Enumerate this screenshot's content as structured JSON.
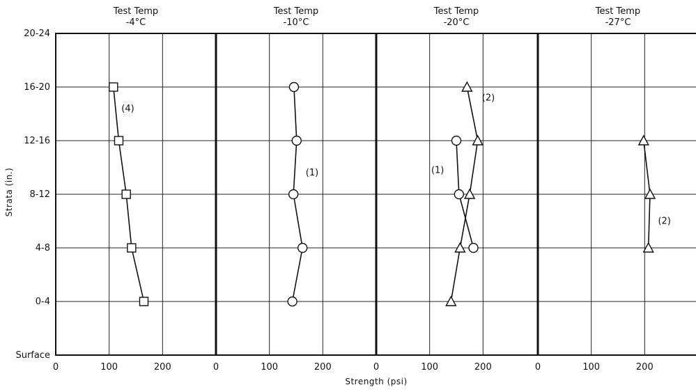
{
  "chart_data": {
    "type": "line",
    "orientation": "values on x, strata on y",
    "ylabel": "Strata (in.)",
    "xlabel": "Strength (psi)",
    "y_categories": [
      "Surface",
      "0-4",
      "4-8",
      "8-12",
      "12-16",
      "16-20",
      "20-24"
    ],
    "x_ticks": [
      "0",
      "100",
      "200"
    ],
    "xlim": [
      0,
      300
    ],
    "grid": true,
    "panels": [
      {
        "title_line1": "Test Temp",
        "title_line2": "-4°C",
        "series": [
          {
            "marker": "square",
            "label": "(4)",
            "label_at": [
              135,
              4.6
            ],
            "points": [
              [
                108,
                5
              ],
              [
                118,
                4
              ],
              [
                132,
                3
              ],
              [
                142,
                2
              ],
              [
                165,
                1
              ]
            ]
          }
        ]
      },
      {
        "title_line1": "Test Temp",
        "title_line2": "-10°C",
        "series": [
          {
            "marker": "circle",
            "label": "(1)",
            "label_at": [
              180,
              3.4
            ],
            "points": [
              [
                146,
                5
              ],
              [
                151,
                4
              ],
              [
                145,
                3
              ],
              [
                162,
                2
              ],
              [
                143,
                1
              ]
            ]
          }
        ]
      },
      {
        "title_line1": "Test Temp",
        "title_line2": "-20°C",
        "series": [
          {
            "marker": "triangle",
            "label": "(2)",
            "label_at": [
              210,
              4.8
            ],
            "points": [
              [
                170,
                5
              ],
              [
                190,
                4
              ],
              [
                175,
                3
              ],
              [
                157,
                2
              ],
              [
                140,
                1
              ]
            ]
          },
          {
            "marker": "circle",
            "label": "(1)",
            "label_at": [
              115,
              3.45
            ],
            "points": [
              [
                150,
                4
              ],
              [
                155,
                3
              ],
              [
                182,
                2
              ]
            ]
          }
        ]
      },
      {
        "title_line1": "Test Temp",
        "title_line2": "-27°C",
        "series": [
          {
            "marker": "triangle",
            "label": "(2)",
            "label_at": [
              237,
              2.5
            ],
            "points": [
              [
                198,
                4
              ],
              [
                210,
                3
              ],
              [
                207,
                2
              ]
            ]
          }
        ]
      }
    ]
  }
}
